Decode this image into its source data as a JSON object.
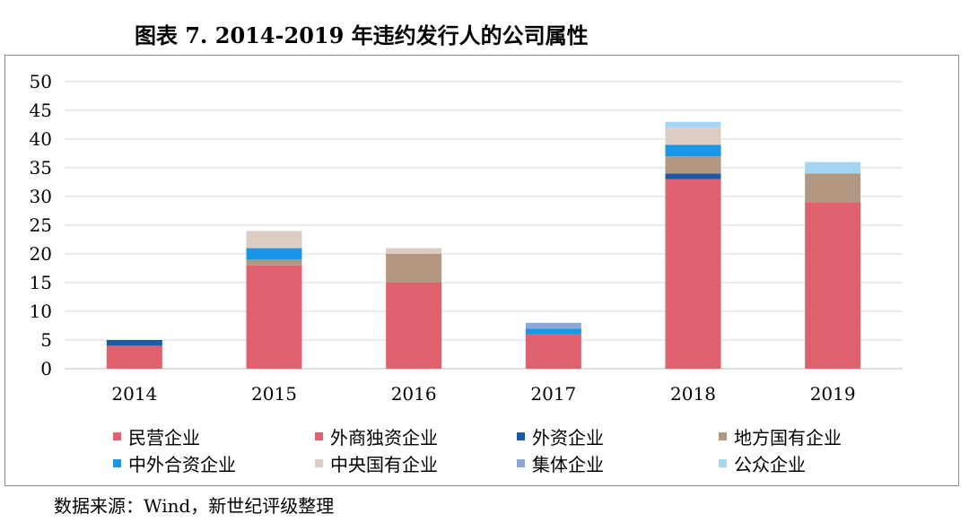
{
  "title": "图表 7. 2014-2019 年违约发行人的公司属性",
  "source": "数据来源：Wind，新世纪评级整理",
  "chart_data": {
    "type": "bar",
    "stacked": true,
    "categories": [
      "2014",
      "2015",
      "2016",
      "2017",
      "2018",
      "2019"
    ],
    "ylim": [
      0,
      50
    ],
    "yticks": [
      0,
      5,
      10,
      15,
      20,
      25,
      30,
      35,
      40,
      45,
      50
    ],
    "grid": true,
    "legend_position": "bottom",
    "series": [
      {
        "name": "民营企业",
        "color": "#e0616e",
        "values": [
          4,
          18,
          15,
          6,
          33,
          29
        ]
      },
      {
        "name": "外商独资企业",
        "color": "#e0616e",
        "values": [
          0,
          0,
          0,
          0,
          0,
          0
        ]
      },
      {
        "name": "外资企业",
        "color": "#1a5aa6",
        "values": [
          1,
          0,
          0,
          0,
          1,
          0
        ]
      },
      {
        "name": "地方国有企业",
        "color": "#b39780",
        "values": [
          0,
          1,
          5,
          0,
          3,
          5
        ]
      },
      {
        "name": "中外合资企业",
        "color": "#1997e6",
        "values": [
          0,
          2,
          0,
          1,
          2,
          0
        ]
      },
      {
        "name": "中央国有企业",
        "color": "#dcccc2",
        "values": [
          0,
          3,
          1,
          0,
          3,
          0
        ]
      },
      {
        "name": "集体企业",
        "color": "#8da8d6",
        "values": [
          0,
          0,
          0,
          1,
          0,
          0
        ]
      },
      {
        "name": "公众企业",
        "color": "#a4d6f4",
        "values": [
          0,
          0,
          0,
          0,
          1,
          2
        ]
      }
    ]
  }
}
